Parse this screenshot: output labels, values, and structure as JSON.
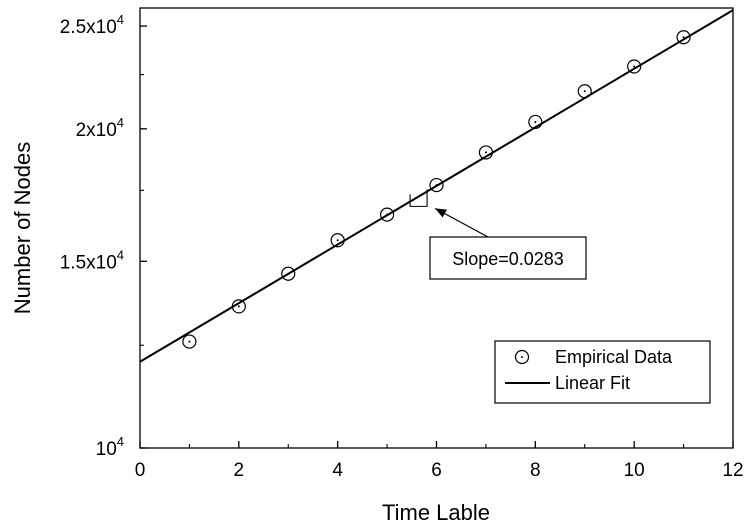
{
  "chart_data": {
    "type": "scatter",
    "xlabel": "Time Lable",
    "ylabel": "Number of Nodes",
    "xlim": [
      0,
      12
    ],
    "ylim": [
      10000,
      26000
    ],
    "yscale": "log",
    "grid": false,
    "legend_placement": "bottom-right",
    "x_ticks": [
      {
        "value": 0,
        "label": "0"
      },
      {
        "value": 2,
        "label": "2"
      },
      {
        "value": 4,
        "label": "4"
      },
      {
        "value": 6,
        "label": "6"
      },
      {
        "value": 8,
        "label": "8"
      },
      {
        "value": 10,
        "label": "10"
      },
      {
        "value": 12,
        "label": "12"
      }
    ],
    "y_ticks": [
      {
        "value": 10000,
        "base": "10",
        "exp": "4"
      },
      {
        "value": 15000,
        "base": "1.5x10",
        "exp": "4"
      },
      {
        "value": 20000,
        "base": "2x10",
        "exp": "4"
      },
      {
        "value": 25000,
        "base": "2.5x10",
        "exp": "4"
      }
    ],
    "series": [
      {
        "name": "Empirical Data",
        "kind": "scatter",
        "marker": "circle-dot",
        "x": [
          1,
          2,
          3,
          4,
          5,
          6,
          7,
          8,
          9,
          10,
          11
        ],
        "y": [
          12600,
          13600,
          14600,
          15700,
          16600,
          17700,
          19000,
          20300,
          21700,
          22900,
          24400
        ]
      },
      {
        "name": "Linear Fit",
        "kind": "line",
        "x": [
          0,
          12
        ],
        "y": [
          12060,
          25880
        ]
      }
    ],
    "annotation": {
      "text": "Slope=0.0283",
      "arrow_to": {
        "x": 5.85,
        "y": 16900
      }
    }
  }
}
